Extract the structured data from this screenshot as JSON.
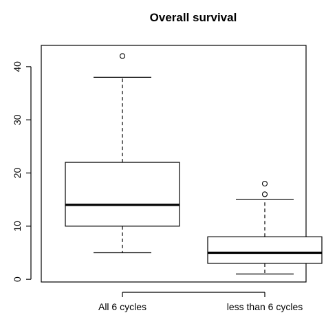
{
  "chart_data": {
    "type": "boxplot",
    "title": "Overall survival",
    "xlabel": "",
    "ylabel": "",
    "ylim": [
      -0.5,
      44
    ],
    "yticks": [
      0,
      10,
      20,
      30,
      40
    ],
    "categories": [
      "All 6 cycles",
      "less than 6 cycles"
    ],
    "boxes": [
      {
        "category": "All 6 cycles",
        "whisker_low": 5,
        "q1": 10,
        "median": 14,
        "q3": 22,
        "whisker_high": 38,
        "outliers": [
          42
        ]
      },
      {
        "category": "less than 6 cycles",
        "whisker_low": 1,
        "q1": 3,
        "median": 5,
        "q3": 8,
        "whisker_high": 15,
        "outliers": [
          16,
          18
        ]
      }
    ],
    "grid": false,
    "legend": "none"
  }
}
